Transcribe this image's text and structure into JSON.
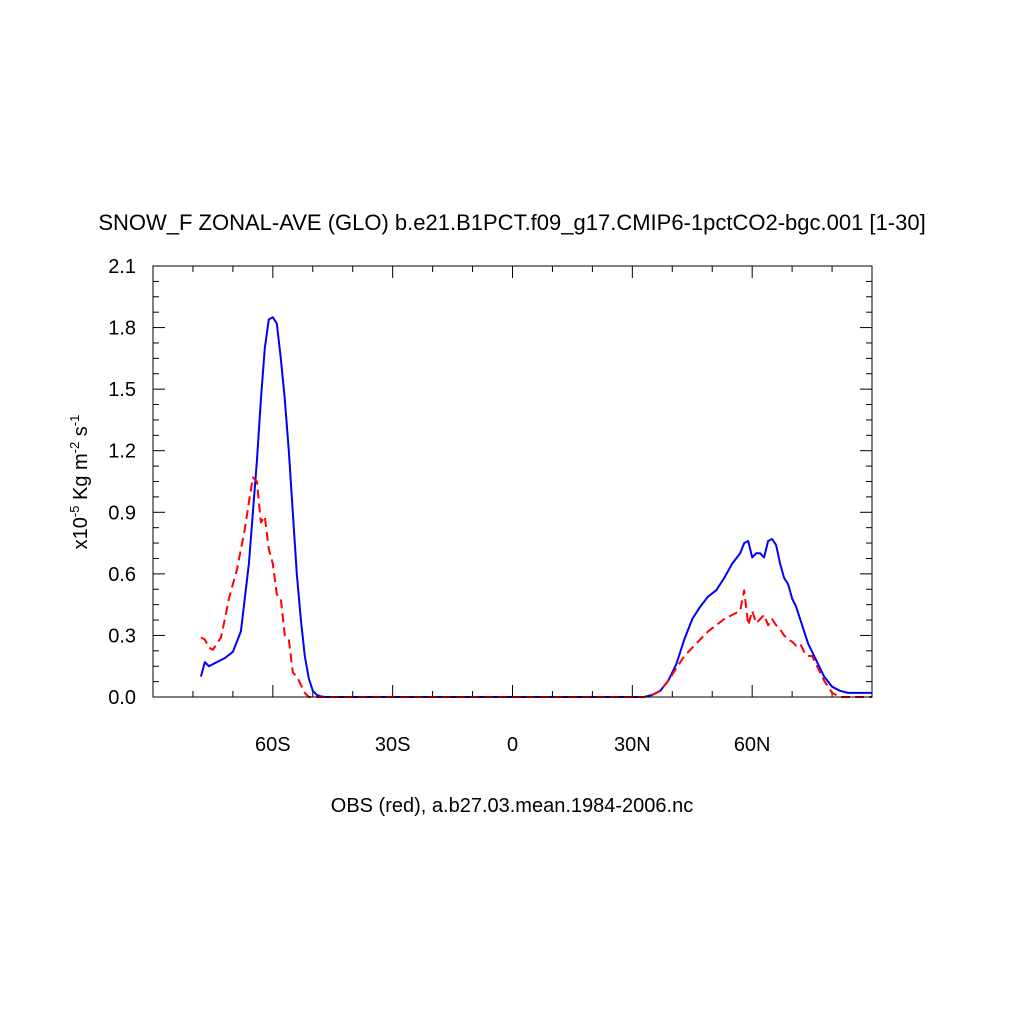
{
  "chart_data": {
    "type": "line",
    "title": "SNOW_F ZONAL-AVE (GLO) b.e21.B1PCT.f09_g17.CMIP6-1pctCO2-bgc.001 [1-30]",
    "xlabel": "OBS (red), a.b27.03.mean.1984-2006.nc",
    "ylabel": {
      "prefix": "x10",
      "exp1": "-5",
      "units_a": " Kg m",
      "exp2": "-2",
      "units_b": " s",
      "exp3": "-1"
    },
    "xlim": [
      -90,
      90
    ],
    "ylim": [
      0,
      2.1
    ],
    "x_ticks": [
      {
        "value": -60,
        "label": "60S"
      },
      {
        "value": -30,
        "label": "30S"
      },
      {
        "value": 0,
        "label": "0"
      },
      {
        "value": 30,
        "label": "30N"
      },
      {
        "value": 60,
        "label": "60N"
      }
    ],
    "y_ticks": [
      {
        "value": 0.0,
        "label": "0.0"
      },
      {
        "value": 0.3,
        "label": "0.3"
      },
      {
        "value": 0.6,
        "label": "0.6"
      },
      {
        "value": 0.9,
        "label": "0.9"
      },
      {
        "value": 1.2,
        "label": "1.2"
      },
      {
        "value": 1.5,
        "label": "1.5"
      },
      {
        "value": 1.8,
        "label": "1.8"
      },
      {
        "value": 2.1,
        "label": "2.1"
      }
    ],
    "series": [
      {
        "color": "#0000ff",
        "dash": "solid",
        "x": [
          -78,
          -77,
          -76,
          -74,
          -72,
          -70,
          -68,
          -66,
          -64,
          -63,
          -62,
          -61,
          -60,
          -59,
          -58,
          -57,
          -56,
          -55,
          -54,
          -53,
          -52,
          -51,
          -50,
          -49,
          -48,
          -47,
          -46,
          -45,
          -44,
          -42,
          -40,
          -35,
          -20,
          0,
          20,
          30,
          33,
          35,
          37,
          39,
          41,
          43,
          45,
          47,
          49,
          51,
          53,
          55,
          57,
          58,
          59,
          60,
          61,
          62,
          63,
          64,
          65,
          66,
          67,
          68,
          69,
          70,
          71,
          72,
          74,
          76,
          78,
          80,
          82,
          84,
          86,
          88,
          90
        ],
        "y": [
          0.1,
          0.17,
          0.15,
          0.17,
          0.19,
          0.22,
          0.32,
          0.65,
          1.15,
          1.45,
          1.7,
          1.84,
          1.85,
          1.82,
          1.65,
          1.45,
          1.2,
          0.9,
          0.6,
          0.38,
          0.2,
          0.09,
          0.03,
          0.01,
          0.003,
          0,
          0,
          0,
          0,
          0,
          0,
          0,
          0,
          0,
          0,
          0,
          0,
          0.01,
          0.03,
          0.08,
          0.16,
          0.28,
          0.38,
          0.44,
          0.49,
          0.52,
          0.58,
          0.65,
          0.7,
          0.75,
          0.76,
          0.68,
          0.7,
          0.7,
          0.68,
          0.76,
          0.77,
          0.74,
          0.65,
          0.58,
          0.55,
          0.48,
          0.44,
          0.38,
          0.26,
          0.18,
          0.1,
          0.05,
          0.03,
          0.02,
          0.02,
          0.02,
          0.02
        ]
      },
      {
        "color": "#ff0000",
        "dash": "dashed",
        "x": [
          -78,
          -77,
          -76,
          -75,
          -74,
          -73,
          -72,
          -71,
          -70,
          -69,
          -68,
          -67,
          -66,
          -65,
          -64,
          -63,
          -62,
          -61,
          -60,
          -59,
          -58,
          -57,
          -56,
          -55,
          -54,
          -53,
          -52,
          -51,
          -50,
          -49,
          -48,
          -47,
          -46,
          -45,
          -44,
          -40,
          -30,
          0,
          30,
          33,
          35,
          37,
          39,
          41,
          43,
          45,
          47,
          49,
          51,
          53,
          55,
          57,
          58,
          59,
          60,
          61,
          62,
          63,
          64,
          65,
          66,
          67,
          68,
          69,
          70,
          71,
          72,
          73,
          74,
          75,
          76,
          77,
          78,
          79,
          80,
          81,
          82,
          84,
          86,
          88,
          90
        ],
        "y": [
          0.29,
          0.28,
          0.24,
          0.23,
          0.26,
          0.29,
          0.38,
          0.48,
          0.55,
          0.62,
          0.72,
          0.82,
          0.95,
          1.07,
          1.05,
          0.85,
          0.88,
          0.72,
          0.65,
          0.5,
          0.48,
          0.3,
          0.28,
          0.12,
          0.1,
          0.06,
          0.02,
          0,
          0,
          0,
          0,
          0,
          0,
          0,
          0,
          0,
          0,
          0,
          0,
          0,
          0.01,
          0.03,
          0.08,
          0.14,
          0.2,
          0.24,
          0.28,
          0.32,
          0.35,
          0.38,
          0.4,
          0.42,
          0.52,
          0.35,
          0.42,
          0.36,
          0.38,
          0.4,
          0.35,
          0.38,
          0.35,
          0.33,
          0.3,
          0.28,
          0.27,
          0.25,
          0.26,
          0.22,
          0.2,
          0.2,
          0.16,
          0.12,
          0.08,
          0.05,
          0.02,
          0.01,
          0,
          0,
          0,
          0,
          0
        ]
      }
    ]
  }
}
